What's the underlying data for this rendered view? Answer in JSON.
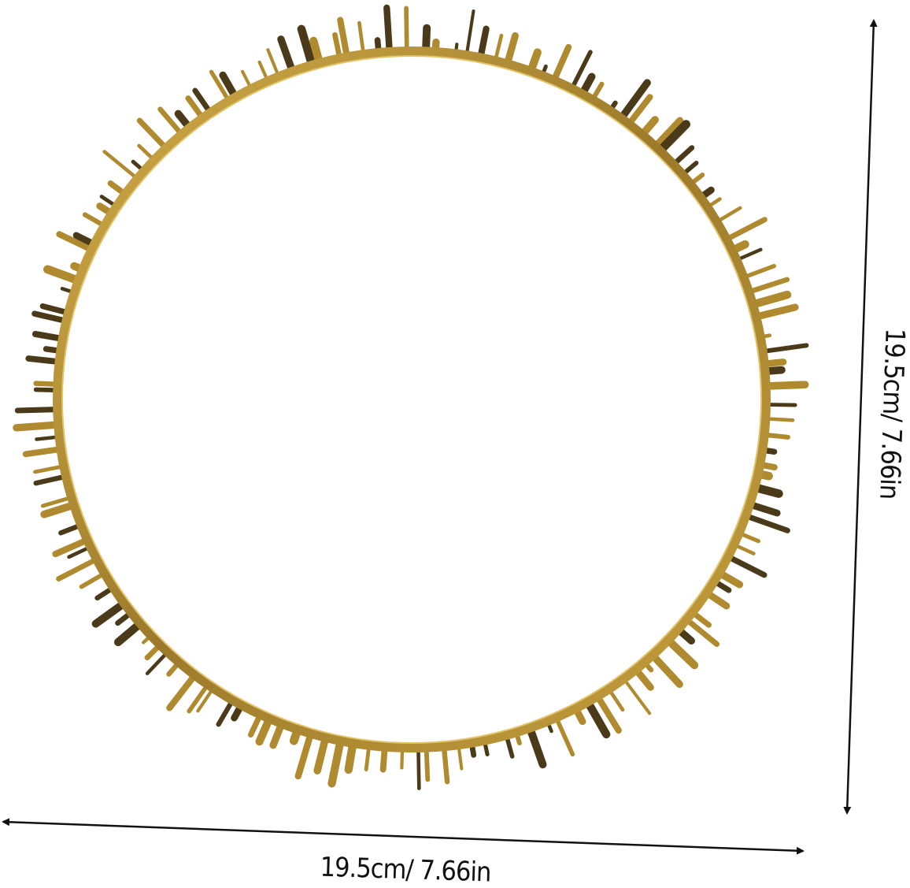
{
  "product": {
    "name_icon": "gold-spiked-ring-tray-icon",
    "metal_color": "#b08a2e",
    "shadow_color": "#4a3a1a"
  },
  "dimensions": {
    "width_label": "19.5cm/ 7.66in",
    "height_label": "19.5cm/ 7.66in",
    "arrow_color": "#111111"
  }
}
